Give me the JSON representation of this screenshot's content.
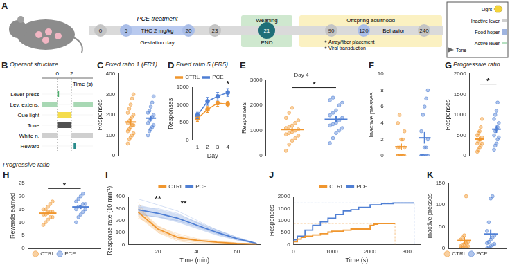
{
  "schematic": {
    "panel": "A",
    "phases": [
      {
        "label": "PCE treatment",
        "sublabel": "THC 2 mg/kg",
        "axis_label": "Gestation day",
        "color": "#b9caef"
      },
      {
        "label": "Weaning",
        "axis_label": "PND",
        "color": "#cfe8cf"
      },
      {
        "label": "Offspring adulthood",
        "color": "#fbf1c2"
      }
    ],
    "nodes": [
      {
        "label": "0",
        "color": "#c4c4c4"
      },
      {
        "label": "5",
        "color": "#a9bde8"
      },
      {
        "label": "20",
        "color": "#a9bde8"
      },
      {
        "label": "23",
        "color": "#c4c4c4"
      },
      {
        "label": "21",
        "color": "#1f6f78"
      },
      {
        "label": "90",
        "color": "#c4c4c4"
      },
      {
        "label": "120",
        "color": "#a9bde8"
      },
      {
        "label": "240",
        "color": "#c4c4c4"
      }
    ],
    "events": [
      "Array/fiber placement",
      "Viral transduction"
    ],
    "behavior": "Behavior",
    "operant_box": {
      "labels": [
        "Light",
        "Inactive lever",
        "Food hoper",
        "Active lever",
        "Tone"
      ]
    }
  },
  "operant_structure": {
    "panel": "B",
    "title": "Operant structure",
    "x_label": "Time (s)",
    "xlim": [
      -2.2,
      5
    ],
    "xticks": [
      0,
      2
    ],
    "rows": [
      {
        "label": "Lever press",
        "color": "#4fae6e",
        "intervals": [
          [
            0,
            0.25
          ]
        ]
      },
      {
        "label": "Lev. extens.",
        "color": "#a8d8b4",
        "intervals": [
          [
            -2.2,
            0
          ],
          [
            2.3,
            5
          ]
        ]
      },
      {
        "label": "Cue light",
        "color": "#f4dc4c",
        "intervals": [
          [
            0,
            2
          ]
        ]
      },
      {
        "label": "Tone",
        "color": "#505050",
        "intervals": [
          [
            0,
            2
          ]
        ]
      },
      {
        "label": "White n.",
        "color": "#cfcfcf",
        "intervals": [
          [
            -2.2,
            0
          ],
          [
            2,
            5
          ]
        ]
      },
      {
        "label": "Reward",
        "color": "#2a8c8c",
        "intervals": [
          [
            2.3,
            2.6
          ]
        ]
      }
    ]
  },
  "chart_data": [
    {
      "panel": "C",
      "type": "dot",
      "title": "Fixed ratio 1 (FR1)",
      "y_label": "Responses",
      "ylim": [
        0,
        400
      ],
      "yticks": [
        0,
        100,
        200,
        300,
        400
      ],
      "grid": false,
      "tick_labels": "y",
      "series": [
        {
          "name": "CTRL",
          "color": "#f0962e",
          "values": [
            60,
            80,
            90,
            100,
            110,
            120,
            130,
            140,
            150,
            150,
            160,
            170,
            180,
            190,
            200,
            210,
            230,
            250,
            280,
            300
          ],
          "mean": 165,
          "sem": 15
        },
        {
          "name": "PCE",
          "color": "#4f7fd4",
          "values": [
            100,
            120,
            130,
            140,
            150,
            160,
            170,
            180,
            190,
            200,
            210,
            220,
            240,
            260,
            290
          ],
          "mean": 184,
          "sem": 13
        }
      ]
    },
    {
      "panel": "D",
      "type": "line",
      "title": "Fixed ratio 5 (FR5)",
      "x_label": "Day",
      "y_label": "Responses",
      "x": [
        1,
        2,
        3,
        4
      ],
      "xlim": [
        0.5,
        4.5
      ],
      "xticks": [
        1,
        2,
        3,
        4
      ],
      "ylim": [
        0,
        1500
      ],
      "yticks": [
        0,
        500,
        1000,
        1500
      ],
      "grid": false,
      "legend": "top",
      "marker": "circle",
      "series": [
        {
          "name": "CTRL",
          "color": "#f0962e",
          "values": [
            610,
            870,
            1050,
            1020
          ],
          "sem": [
            80,
            85,
            90,
            80
          ]
        },
        {
          "name": "PCE",
          "color": "#4f7fd4",
          "values": [
            700,
            1100,
            1240,
            1350
          ],
          "sem": [
            90,
            110,
            110,
            110
          ]
        }
      ],
      "annotations": [
        {
          "x": 4,
          "y": 1480,
          "text": "*"
        }
      ]
    },
    {
      "panel": "E",
      "type": "dot",
      "subtitle": "Day 4",
      "y_label": "Responses",
      "ylim": [
        0,
        3000
      ],
      "yticks": [
        0,
        1000,
        2000,
        3000
      ],
      "grid": false,
      "tick_labels": "y",
      "series": [
        {
          "name": "CTRL",
          "color": "#f0962e",
          "values": [
            200,
            450,
            600,
            700,
            800,
            850,
            900,
            950,
            1000,
            1050,
            1100,
            1150,
            1200,
            1300,
            1400,
            1500,
            1700,
            1900
          ],
          "mean": 1042,
          "sem": 95
        },
        {
          "name": "PCE",
          "color": "#4f7fd4",
          "values": [
            500,
            700,
            900,
            1000,
            1100,
            1200,
            1250,
            1300,
            1400,
            1500,
            1600,
            1700,
            1800,
            2000,
            2100,
            2200,
            2300
          ],
          "mean": 1444,
          "sem": 125
        }
      ],
      "annotations": [
        {
          "y": 2700,
          "text": "*"
        }
      ]
    },
    {
      "panel": "F",
      "type": "dot",
      "y_label": "Inactive presses",
      "ylim": [
        0,
        10
      ],
      "yticks": [
        0,
        2,
        4,
        6,
        8,
        10
      ],
      "grid": false,
      "tick_labels": "y",
      "series": [
        {
          "name": "CTRL",
          "color": "#f0962e",
          "values": [
            0,
            0,
            0,
            0,
            0,
            0,
            0,
            0,
            0,
            1,
            1,
            1,
            2,
            2,
            3,
            4,
            5
          ],
          "mean": 1.1,
          "sem": 0.4
        },
        {
          "name": "PCE",
          "color": "#4f7fd4",
          "values": [
            0,
            0,
            0,
            0,
            0,
            0,
            0,
            1,
            1,
            2,
            3,
            5,
            6,
            7,
            8
          ],
          "mean": 2.2,
          "sem": 0.7
        }
      ]
    },
    {
      "panel": "G",
      "type": "dot",
      "title": "Progressive ratio",
      "y_label": "Responses",
      "ylim": [
        0,
        2000
      ],
      "yticks": [
        0,
        500,
        1000,
        1500,
        2000
      ],
      "grid": false,
      "tick_labels": "y",
      "series": [
        {
          "name": "CTRL",
          "color": "#f0962e",
          "values": [
            100,
            150,
            200,
            250,
            300,
            300,
            350,
            400,
            400,
            450,
            500,
            550,
            600,
            700,
            900
          ],
          "mean": 410,
          "sem": 55
        },
        {
          "name": "PCE",
          "color": "#4f7fd4",
          "values": [
            150,
            250,
            300,
            400,
            450,
            500,
            600,
            650,
            700,
            800,
            900,
            1000,
            1100,
            1300
          ],
          "mean": 650,
          "sem": 90
        }
      ],
      "annotations": [
        {
          "y": 1750,
          "text": "*"
        }
      ]
    },
    {
      "panel": "H",
      "type": "dot",
      "title": "Progressive ratio",
      "y_label": "Rewards earned",
      "ylim": [
        0,
        25
      ],
      "yticks": [
        0,
        5,
        10,
        15,
        20,
        25
      ],
      "grid": false,
      "tick_labels": "y",
      "legend": "bottom",
      "series": [
        {
          "name": "CTRL",
          "color": "#f0962e",
          "values": [
            9,
            10,
            11,
            12,
            12,
            13,
            13,
            14,
            14,
            14,
            15,
            15,
            16,
            17,
            18
          ],
          "mean": 13.5,
          "sem": 0.65
        },
        {
          "name": "PCE",
          "color": "#4f7fd4",
          "values": [
            10,
            12,
            13,
            14,
            15,
            15,
            16,
            16,
            17,
            17,
            18,
            19,
            20,
            21
          ],
          "mean": 15.9,
          "sem": 0.8
        }
      ],
      "annotations": [
        {
          "y": 23,
          "text": "*"
        }
      ]
    },
    {
      "panel": "I",
      "type": "line",
      "x_label": "Time (min)",
      "y_label": "Response rate (10 min⁻¹)",
      "x": [
        10,
        20,
        30,
        40,
        50,
        60,
        70
      ],
      "xlim": [
        5,
        72
      ],
      "xticks": [
        20,
        40,
        60
      ],
      "ylim": [
        0,
        400
      ],
      "yticks": [
        0,
        100,
        200,
        300,
        400
      ],
      "grid": false,
      "legend": "top",
      "series": [
        {
          "name": "CTRL",
          "color": "#f0962e",
          "values": [
            270,
            130,
            60,
            35,
            20,
            10,
            5
          ],
          "sem": [
            40,
            30,
            20,
            12,
            8,
            5,
            3
          ],
          "individuals": [
            [
              320,
              120,
              40,
              20,
              10,
              5,
              0
            ],
            [
              220,
              150,
              90,
              50,
              30,
              15,
              5
            ],
            [
              350,
              100,
              30,
              10,
              5,
              0,
              0
            ]
          ]
        },
        {
          "name": "PCE",
          "color": "#4f7fd4",
          "values": [
            290,
            260,
            220,
            160,
            100,
            50,
            10
          ],
          "sem": [
            40,
            35,
            35,
            30,
            25,
            15,
            5
          ],
          "individuals": [
            [
              380,
              330,
              280,
              200,
              120,
              60,
              10
            ],
            [
              250,
              230,
              200,
              150,
              90,
              40,
              10
            ],
            [
              310,
              300,
              260,
              180,
              110,
              50,
              5
            ]
          ]
        }
      ],
      "annotations": [
        {
          "x": 20,
          "y": 345,
          "text": "**"
        },
        {
          "x": 33,
          "y": 305,
          "text": "**"
        }
      ]
    },
    {
      "panel": "J",
      "type": "line",
      "line_style": "steps",
      "x_label": "Time (s)",
      "y_label": "Responses",
      "xlim": [
        0,
        3300
      ],
      "xticks": [
        0,
        1000,
        2000,
        3000
      ],
      "ylim": [
        0,
        2000
      ],
      "yticks": [
        0,
        500,
        1000,
        1500,
        2000
      ],
      "grid": false,
      "legend": "top",
      "series": [
        {
          "name": "CTRL",
          "color": "#f0962e",
          "x": [
            0,
            100,
            200,
            300,
            500,
            700,
            900,
            1000,
            1300,
            1500,
            2000,
            2100,
            2200,
            2650
          ],
          "values": [
            0,
            120,
            230,
            300,
            350,
            400,
            450,
            520,
            560,
            600,
            650,
            800,
            850,
            880
          ]
        },
        {
          "name": "PCE",
          "color": "#4f7fd4",
          "x": [
            0,
            100,
            300,
            500,
            700,
            900,
            1100,
            1300,
            1500,
            1700,
            2000,
            2300,
            2600,
            3150
          ],
          "values": [
            0,
            200,
            350,
            600,
            800,
            950,
            1100,
            1250,
            1400,
            1450,
            1550,
            1650,
            1700,
            1730
          ]
        }
      ]
    },
    {
      "panel": "K",
      "type": "dot",
      "y_label": "Inactive presses",
      "ylim": [
        0,
        150
      ],
      "yticks": [
        0,
        50,
        100,
        150
      ],
      "grid": false,
      "tick_labels": "y",
      "legend": "bottom",
      "series": [
        {
          "name": "CTRL",
          "color": "#f0962e",
          "values": [
            0,
            0,
            2,
            3,
            5,
            5,
            8,
            10,
            12,
            15,
            20,
            25,
            30,
            120
          ],
          "mean": 18.2,
          "sem": 8.3
        },
        {
          "name": "PCE",
          "color": "#4f7fd4",
          "values": [
            0,
            2,
            5,
            8,
            10,
            12,
            15,
            20,
            25,
            30,
            40,
            60,
            115,
            120
          ],
          "mean": 33,
          "sem": 10.5
        }
      ]
    }
  ]
}
